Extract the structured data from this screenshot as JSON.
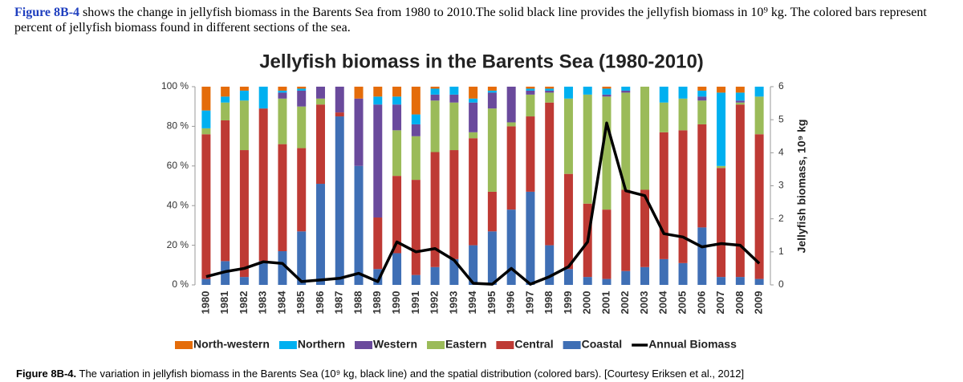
{
  "intro": {
    "label": "Figure 8B-4",
    "text": " shows the change in jellyfish biomass in the Barents Sea from 1980 to 2010.The solid black line provides the jellyfish biomass in 10⁹ kg. The colored bars represent percent of jellyfish biomass found in different sections of the sea."
  },
  "caption": {
    "label": "Figure 8B-4.",
    "text": " The variation in jellyfish biomass in the Barents Sea (10⁹ kg, black line) and the spatial distribution (colored bars). [Courtesy Eriksen et al., 2012]"
  },
  "chart_data": {
    "type": "bar",
    "stacked": true,
    "title": "Jellyfish biomass in the Barents Sea (1980-2010)",
    "y2label": "Jellyfish biomass, 10⁹ kg",
    "categories": [
      "1980",
      "1981",
      "1982",
      "1983",
      "1984",
      "1985",
      "1986",
      "1987",
      "1988",
      "1989",
      "1990",
      "1991",
      "1992",
      "1993",
      "1994",
      "1995",
      "1996",
      "1997",
      "1998",
      "1999",
      "2000",
      "2001",
      "2002",
      "2003",
      "2004",
      "2005",
      "2006",
      "2007",
      "2008",
      "2009"
    ],
    "ylim": [
      0,
      100
    ],
    "yticks": [
      {
        "value": 0,
        "label": "0 %"
      },
      {
        "value": 20,
        "label": "20 %"
      },
      {
        "value": 40,
        "label": "40 %"
      },
      {
        "value": 60,
        "label": "60 %"
      },
      {
        "value": 80,
        "label": "80 %"
      },
      {
        "value": 100,
        "label": "100 %"
      }
    ],
    "y2lim": [
      0,
      6
    ],
    "y2ticks": [
      0,
      1,
      2,
      3,
      4,
      5,
      6
    ],
    "series": [
      {
        "name": "North-western",
        "color": "#e46c0a",
        "values": [
          12,
          5,
          2,
          0,
          2,
          1,
          0,
          0,
          6,
          5,
          5,
          14,
          1,
          0,
          6,
          2,
          0,
          1,
          1,
          0,
          0,
          1,
          0,
          0,
          0,
          0,
          2,
          3,
          3,
          0
        ]
      },
      {
        "name": "Northern",
        "color": "#00b0f0",
        "values": [
          9,
          3,
          5,
          11,
          1,
          1,
          0,
          0,
          0,
          4,
          4,
          5,
          3,
          4,
          2,
          1,
          0,
          1,
          1,
          6,
          4,
          3,
          2,
          0,
          8,
          6,
          3,
          37,
          4,
          5
        ]
      },
      {
        "name": "Western",
        "color": "#6a4a9c",
        "values": [
          0,
          0,
          0,
          0,
          3,
          8,
          6,
          13,
          34,
          57,
          13,
          6,
          3,
          4,
          15,
          8,
          18,
          2,
          1,
          0,
          0,
          1,
          1,
          0,
          0,
          0,
          2,
          0,
          1,
          0
        ]
      },
      {
        "name": "Eastern",
        "color": "#9bbb59",
        "values": [
          3,
          9,
          25,
          0,
          23,
          21,
          3,
          0,
          0,
          0,
          23,
          22,
          26,
          24,
          3,
          42,
          2,
          11,
          5,
          38,
          55,
          57,
          49,
          52,
          15,
          16,
          12,
          1,
          1,
          19
        ]
      },
      {
        "name": "Central",
        "color": "#be3a34",
        "values": [
          73,
          71,
          64,
          77,
          54,
          42,
          40,
          2,
          0,
          26,
          39,
          48,
          58,
          55,
          54,
          20,
          42,
          38,
          72,
          48,
          37,
          35,
          41,
          39,
          64,
          67,
          52,
          55,
          87,
          73
        ]
      },
      {
        "name": "Coastal",
        "color": "#3f6fb5",
        "values": [
          3,
          12,
          4,
          12,
          17,
          27,
          51,
          85,
          60,
          8,
          16,
          5,
          9,
          13,
          20,
          27,
          38,
          47,
          20,
          8,
          4,
          3,
          7,
          9,
          13,
          11,
          29,
          4,
          4,
          3
        ]
      },
      {
        "name": "Annual Biomass",
        "type": "line",
        "axis": "y2",
        "color": "#000000",
        "values": [
          0.25,
          0.4,
          0.5,
          0.7,
          0.65,
          0.1,
          0.15,
          0.2,
          0.35,
          0.1,
          1.3,
          1.0,
          1.1,
          0.75,
          0.05,
          0.02,
          0.5,
          0.02,
          0.25,
          0.55,
          1.3,
          4.9,
          2.85,
          2.7,
          1.55,
          1.45,
          1.15,
          1.25,
          1.2,
          0.65
        ]
      }
    ]
  }
}
